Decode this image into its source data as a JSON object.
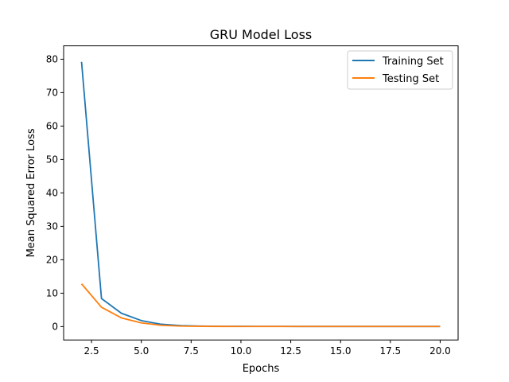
{
  "chart_data": {
    "type": "line",
    "title": "GRU Model Loss",
    "xlabel": "Epochs",
    "ylabel": "Mean Squared Error Loss",
    "xlim": [
      1.1,
      20.9
    ],
    "ylim": [
      -4,
      84
    ],
    "xticks": [
      2.5,
      5.0,
      7.5,
      10.0,
      12.5,
      15.0,
      17.5,
      20.0
    ],
    "xtick_labels": [
      "2.5",
      "5.0",
      "7.5",
      "10.0",
      "12.5",
      "15.0",
      "17.5",
      "20.0"
    ],
    "yticks": [
      0,
      10,
      20,
      30,
      40,
      50,
      60,
      70,
      80
    ],
    "ytick_labels": [
      "0",
      "10",
      "20",
      "30",
      "40",
      "50",
      "60",
      "70",
      "80"
    ],
    "grid": false,
    "legend_position": "top-right",
    "x": [
      2,
      3,
      4,
      5,
      6,
      7,
      8,
      9,
      10,
      11,
      12,
      13,
      14,
      15,
      16,
      17,
      18,
      19,
      20
    ],
    "series": [
      {
        "name": "Training Set",
        "color": "#1f77b4",
        "values": [
          79.2,
          8.4,
          4.0,
          1.8,
          0.7,
          0.3,
          0.15,
          0.1,
          0.08,
          0.07,
          0.06,
          0.05,
          0.05,
          0.05,
          0.05,
          0.05,
          0.05,
          0.05,
          0.05
        ]
      },
      {
        "name": "Testing Set",
        "color": "#ff7f0e",
        "values": [
          12.8,
          5.8,
          2.6,
          1.1,
          0.4,
          0.15,
          0.08,
          0.05,
          0.04,
          0.03,
          0.03,
          0.03,
          0.03,
          0.03,
          0.03,
          0.03,
          0.03,
          0.03,
          0.03
        ]
      }
    ]
  }
}
